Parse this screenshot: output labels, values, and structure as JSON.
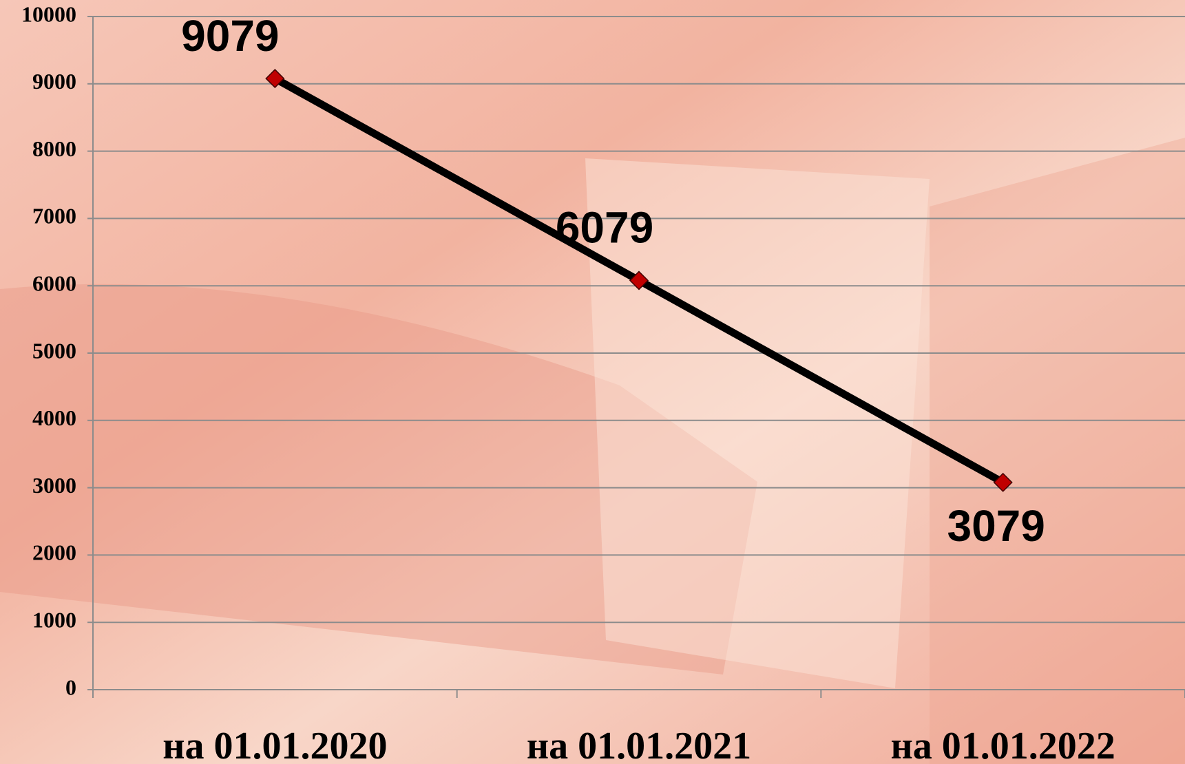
{
  "chart_data": {
    "type": "line",
    "categories": [
      "на 01.01.2020",
      "на 01.01.2021",
      "на 01.01.2022"
    ],
    "series": [
      {
        "values": [
          9079,
          6079,
          3079
        ],
        "color": "#000000",
        "marker_color": "#c00000"
      }
    ],
    "ylim": [
      0,
      10000
    ],
    "yticks": [
      0,
      1000,
      2000,
      3000,
      4000,
      5000,
      6000,
      7000,
      8000,
      9000,
      10000
    ],
    "grid": true
  }
}
